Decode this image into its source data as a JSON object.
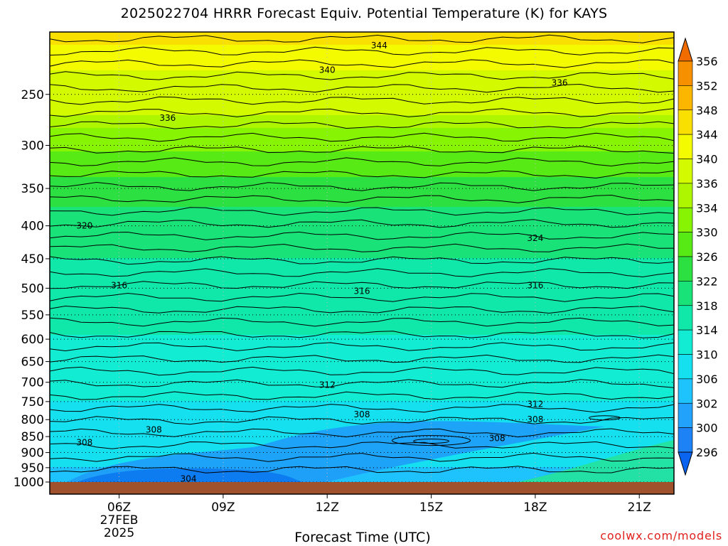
{
  "title": "2025022704 HRRR Forecast Equiv. Potential Temperature (K) for KAYS",
  "credit": "coolwx.com/models",
  "chart_data": {
    "type": "heatmap",
    "title": "2025022704 HRRR Forecast Equiv. Potential Temperature (K) for KAYS",
    "xlabel": "Forecast Time (UTC)",
    "ylabel": "",
    "x_ticks": [
      "06Z",
      "09Z",
      "12Z",
      "15Z",
      "18Z",
      "21Z"
    ],
    "x_tick_hours": [
      6,
      9,
      12,
      15,
      18,
      21
    ],
    "x_date_label": [
      "27FEB",
      "2025"
    ],
    "xlim_hours": [
      4,
      22
    ],
    "y_ticks": [
      250,
      300,
      350,
      400,
      450,
      500,
      550,
      600,
      650,
      700,
      750,
      800,
      850,
      900,
      950,
      1000
    ],
    "ylim_hpa": [
      1000,
      200
    ],
    "y_scale": "log",
    "colorbar_levels": [
      296,
      300,
      302,
      306,
      310,
      314,
      318,
      322,
      326,
      330,
      334,
      336,
      340,
      344,
      348,
      352,
      356
    ],
    "colorbar_colors": [
      "#0a64f0",
      "#1c82f6",
      "#22a2fa",
      "#1ec2fc",
      "#14e0f0",
      "#12ecd2",
      "#10e8aa",
      "#18e278",
      "#2ce042",
      "#58ea14",
      "#86f402",
      "#aef600",
      "#d4fa00",
      "#f4fa00",
      "#fae000",
      "#fcb600",
      "#f69000",
      "#f06c00"
    ],
    "grid": "dotted",
    "contour_profiles": [
      {
        "pressure_hpa": 1000,
        "theta_e_K": 304
      },
      {
        "pressure_hpa": 900,
        "theta_e_K": 308
      },
      {
        "pressure_hpa": 850,
        "theta_e_K": 308
      },
      {
        "pressure_hpa": 800,
        "theta_e_K": 308
      },
      {
        "pressure_hpa": 700,
        "theta_e_K": 312
      },
      {
        "pressure_hpa": 500,
        "theta_e_K": 316
      },
      {
        "pressure_hpa": 400,
        "theta_e_K": 320
      },
      {
        "pressure_hpa": 350,
        "theta_e_K": 324
      },
      {
        "pressure_hpa": 270,
        "theta_e_K": 336
      },
      {
        "pressure_hpa": 230,
        "theta_e_K": 340
      },
      {
        "pressure_hpa": 210,
        "theta_e_K": 344
      }
    ],
    "contour_labels": [
      {
        "text": "344",
        "hour": 13.5,
        "pressure_hpa": 210
      },
      {
        "text": "340",
        "hour": 12.0,
        "pressure_hpa": 229
      },
      {
        "text": "336",
        "hour": 18.7,
        "pressure_hpa": 240
      },
      {
        "text": "336",
        "hour": 7.4,
        "pressure_hpa": 272
      },
      {
        "text": "320",
        "hour": 5.0,
        "pressure_hpa": 400
      },
      {
        "text": "324",
        "hour": 18.0,
        "pressure_hpa": 418
      },
      {
        "text": "316",
        "hour": 6.0,
        "pressure_hpa": 495
      },
      {
        "text": "316",
        "hour": 13.0,
        "pressure_hpa": 505
      },
      {
        "text": "316",
        "hour": 18.0,
        "pressure_hpa": 495
      },
      {
        "text": "312",
        "hour": 12.0,
        "pressure_hpa": 707
      },
      {
        "text": "312",
        "hour": 18.0,
        "pressure_hpa": 757
      },
      {
        "text": "308",
        "hour": 13.0,
        "pressure_hpa": 785
      },
      {
        "text": "308",
        "hour": 18.0,
        "pressure_hpa": 800
      },
      {
        "text": "308",
        "hour": 7.0,
        "pressure_hpa": 830
      },
      {
        "text": "308",
        "hour": 5.0,
        "pressure_hpa": 868
      },
      {
        "text": "308",
        "hour": 16.9,
        "pressure_hpa": 855
      },
      {
        "text": "304",
        "hour": 8.0,
        "pressure_hpa": 988
      }
    ]
  }
}
